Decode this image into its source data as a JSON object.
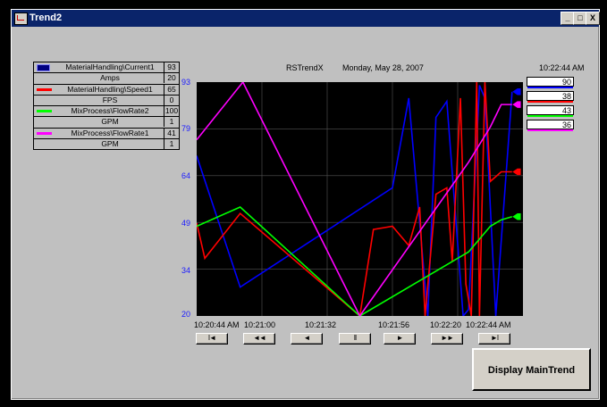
{
  "window": {
    "title": "Trend2",
    "close_label": "X"
  },
  "header": {
    "trend_name": "RSTrendX",
    "date": "Monday, May 28, 2007",
    "time": "10:22:44 AM"
  },
  "legend": [
    {
      "name": "MaterialHandling\\Current1",
      "value": "93",
      "color": "#0000ff"
    },
    {
      "name": "Amps",
      "value": "20"
    },
    {
      "name": "MaterialHandling\\Speed1",
      "value": "65",
      "color": "#ff0000"
    },
    {
      "name": "FPS",
      "value": "0"
    },
    {
      "name": "MixProcess\\FlowRate2",
      "value": "100",
      "color": "#00ff00"
    },
    {
      "name": "GPM",
      "value": "1"
    },
    {
      "name": "MixProcess\\FlowRate1",
      "value": "41",
      "color": "#ff00ff"
    },
    {
      "name": "GPM",
      "value": "1"
    }
  ],
  "current_values": [
    {
      "value": "90",
      "color": "#0000ff"
    },
    {
      "value": "38",
      "color": "#ff0000"
    },
    {
      "value": "43",
      "color": "#00ff00"
    },
    {
      "value": "36",
      "color": "#ff00ff"
    }
  ],
  "buttons": {
    "display_main": "Display MainTrend"
  },
  "nav_buttons": [
    "I◄",
    "◄◄",
    "◄",
    "II",
    "►",
    "►►",
    "►I"
  ],
  "chart_data": {
    "type": "line",
    "y_ticks": [
      "93",
      "79",
      "64",
      "49",
      "34",
      "20"
    ],
    "ylim": [
      20,
      93
    ],
    "x_ticks": [
      "10:20:44 AM",
      "10:21:00",
      "10:21:32",
      "10:21:56",
      "10:22:20",
      "10:22:44 AM"
    ],
    "xlim": [
      0,
      120
    ],
    "grid": true,
    "series": [
      {
        "color": "#0000ff",
        "points": [
          [
            0,
            70
          ],
          [
            16,
            29
          ],
          [
            72,
            60
          ],
          [
            78,
            88
          ],
          [
            85,
            20
          ],
          [
            88,
            82
          ],
          [
            92,
            87
          ],
          [
            98,
            20
          ],
          [
            100,
            22
          ],
          [
            104,
            92
          ],
          [
            106,
            88
          ],
          [
            110,
            20
          ],
          [
            113,
            55
          ],
          [
            116,
            90
          ]
        ]
      },
      {
        "color": "#ff0000",
        "points": [
          [
            0,
            49
          ],
          [
            3,
            38
          ],
          [
            16,
            52
          ],
          [
            60,
            20
          ],
          [
            65,
            47
          ],
          [
            72,
            48
          ],
          [
            78,
            42
          ],
          [
            82,
            54
          ],
          [
            84,
            20
          ],
          [
            88,
            58
          ],
          [
            92,
            60
          ],
          [
            94,
            37
          ],
          [
            97,
            88
          ],
          [
            99,
            30
          ],
          [
            101,
            20
          ],
          [
            103,
            93
          ],
          [
            104,
            20
          ],
          [
            106,
            93
          ],
          [
            108,
            62
          ],
          [
            112,
            65
          ],
          [
            116,
            65
          ]
        ]
      },
      {
        "color": "#00ff00",
        "points": [
          [
            0,
            48
          ],
          [
            16,
            54
          ],
          [
            60,
            20
          ],
          [
            100,
            40
          ],
          [
            108,
            48
          ],
          [
            112,
            50
          ],
          [
            116,
            51
          ]
        ]
      },
      {
        "color": "#ff00ff",
        "points": [
          [
            0,
            75
          ],
          [
            17,
            93
          ],
          [
            60,
            20
          ],
          [
            95,
            62
          ],
          [
            100,
            68
          ],
          [
            108,
            79
          ],
          [
            112,
            86
          ],
          [
            116,
            86
          ]
        ]
      }
    ]
  }
}
